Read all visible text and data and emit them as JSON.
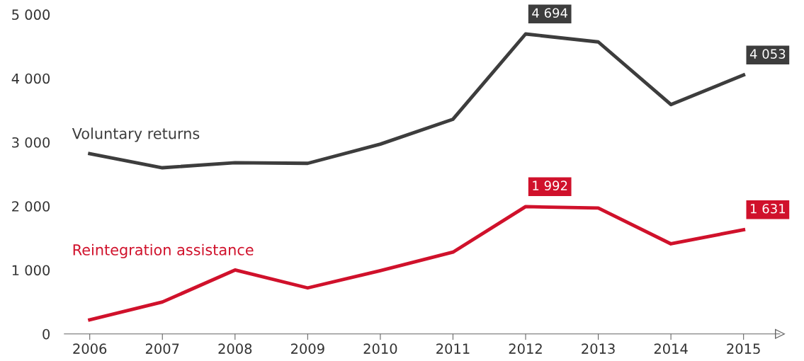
{
  "chart_data": {
    "type": "line",
    "categories": [
      "2006",
      "2007",
      "2008",
      "2009",
      "2010",
      "2011",
      "2012",
      "2013",
      "2014",
      "2015"
    ],
    "series": [
      {
        "name": "Voluntary returns",
        "color": "#3d3d3d",
        "values": [
          2820,
          2600,
          2680,
          2670,
          2970,
          3360,
          4694,
          4570,
          3590,
          4053
        ],
        "value_labels": [
          null,
          null,
          null,
          null,
          null,
          null,
          "4 694",
          null,
          null,
          "4 053"
        ]
      },
      {
        "name": "Reintegration assistance",
        "color": "#d0112b",
        "values": [
          220,
          500,
          1000,
          720,
          990,
          1280,
          1992,
          1970,
          1410,
          1631
        ],
        "value_labels": [
          null,
          null,
          null,
          null,
          null,
          null,
          "1 992",
          null,
          null,
          "1 631"
        ]
      }
    ],
    "ylim": [
      0,
      5000
    ],
    "yticks": [
      {
        "value": 0,
        "label": "0"
      },
      {
        "value": 1000,
        "label": "1 000"
      },
      {
        "value": 2000,
        "label": "2 000"
      },
      {
        "value": 3000,
        "label": "3 000"
      },
      {
        "value": 4000,
        "label": "4 000"
      },
      {
        "value": 5000,
        "label": "5 000"
      }
    ],
    "grid": false,
    "legend": false,
    "marker": "none",
    "line_style": "solid"
  }
}
